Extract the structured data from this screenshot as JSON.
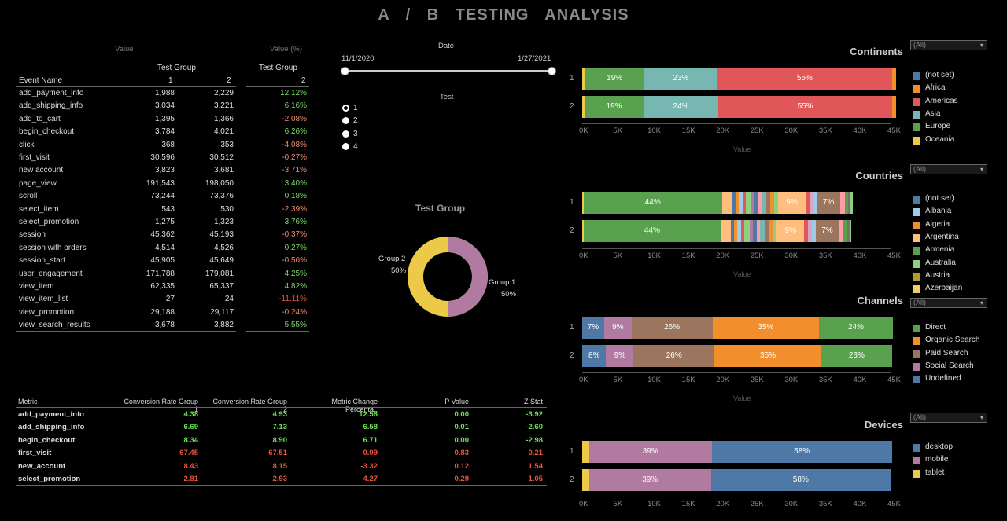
{
  "title": "A / B   TESTING   ANALYSIS",
  "event_table": {
    "value_header": "Value",
    "value_pct_header": "Value (%)",
    "test_group_label": "Test Group",
    "test_group_label2": "Test Group",
    "col_event": "Event Name",
    "col_g1": "1",
    "col_g2": "2",
    "col_pct": "2",
    "rows": [
      {
        "name": "add_payment_info",
        "g1": "1,988",
        "g2": "2,229",
        "pct": "12.12%",
        "sign": "pos"
      },
      {
        "name": "add_shipping_info",
        "g1": "3,034",
        "g2": "3,221",
        "pct": "6.16%",
        "sign": "pos"
      },
      {
        "name": "add_to_cart",
        "g1": "1,395",
        "g2": "1,366",
        "pct": "-2.08%",
        "sign": "neg"
      },
      {
        "name": "begin_checkout",
        "g1": "3,784",
        "g2": "4,021",
        "pct": "6.26%",
        "sign": "pos"
      },
      {
        "name": "click",
        "g1": "368",
        "g2": "353",
        "pct": "-4.08%",
        "sign": "neg"
      },
      {
        "name": "first_visit",
        "g1": "30,596",
        "g2": "30,512",
        "pct": "-0.27%",
        "sign": "neg"
      },
      {
        "name": "new account",
        "g1": "3,823",
        "g2": "3,681",
        "pct": "-3.71%",
        "sign": "neg"
      },
      {
        "name": "page_view",
        "g1": "191,543",
        "g2": "198,050",
        "pct": "3.40%",
        "sign": "pos"
      },
      {
        "name": "scroll",
        "g1": "73,244",
        "g2": "73,376",
        "pct": "0.18%",
        "sign": "pos"
      },
      {
        "name": "select_item",
        "g1": "543",
        "g2": "530",
        "pct": "-2.39%",
        "sign": "neg"
      },
      {
        "name": "select_promotion",
        "g1": "1,275",
        "g2": "1,323",
        "pct": "3.76%",
        "sign": "pos"
      },
      {
        "name": "session",
        "g1": "45,362",
        "g2": "45,193",
        "pct": "-0.37%",
        "sign": "neg"
      },
      {
        "name": "session with orders",
        "g1": "4,514",
        "g2": "4,526",
        "pct": "0.27%",
        "sign": "pos"
      },
      {
        "name": "session_start",
        "g1": "45,905",
        "g2": "45,649",
        "pct": "-0.56%",
        "sign": "neg"
      },
      {
        "name": "user_engagement",
        "g1": "171,788",
        "g2": "179,081",
        "pct": "4.25%",
        "sign": "pos"
      },
      {
        "name": "view_item",
        "g1": "62,335",
        "g2": "65,337",
        "pct": "4.82%",
        "sign": "pos"
      },
      {
        "name": "view_item_list",
        "g1": "27",
        "g2": "24",
        "pct": "-11.11%",
        "sign": "red"
      },
      {
        "name": "view_promotion",
        "g1": "29,188",
        "g2": "29,117",
        "pct": "-0.24%",
        "sign": "neg"
      },
      {
        "name": "view_search_results",
        "g1": "3,678",
        "g2": "3,882",
        "pct": "5.55%",
        "sign": "pos"
      }
    ]
  },
  "filters": {
    "date_label": "Date",
    "date_start": "11/1/2020",
    "date_end": "1/27/2021",
    "test_label": "Test",
    "test_options": [
      "1",
      "2",
      "3",
      "4"
    ],
    "test_selected": "1"
  },
  "donut": {
    "title": "Test Group",
    "group2_label": "Group 2",
    "group2_pct": "50%",
    "group1_label": "Group 1",
    "group1_pct": "50%",
    "group1_color": "#b07aa1",
    "group2_color": "#edc948"
  },
  "metric_table": {
    "headers": [
      "Metric",
      "Conversion Rate Group 1",
      "Conversion Rate Group 2",
      "Metric Change Percenta..",
      "P Value",
      "Z Stat"
    ],
    "rows": [
      {
        "name": "add_payment_info",
        "c1": "4.38",
        "c2": "4.93",
        "c3": "12.56",
        "c4": "0.00",
        "c5": "-3.92",
        "color": "green"
      },
      {
        "name": "add_shipping_info",
        "c1": "6.69",
        "c2": "7.13",
        "c3": "6.58",
        "c4": "0.01",
        "c5": "-2.60",
        "color": "green"
      },
      {
        "name": "begin_checkout",
        "c1": "8.34",
        "c2": "8.90",
        "c3": "6.71",
        "c4": "0.00",
        "c5": "-2.98",
        "color": "green"
      },
      {
        "name": "first_visit",
        "c1": "67.45",
        "c2": "67.51",
        "c3": "0.09",
        "c4": "0.83",
        "c5": "-0.21",
        "color": "red"
      },
      {
        "name": "new_account",
        "c1": "8.43",
        "c2": "8.15",
        "c3": "-3.32",
        "c4": "0.12",
        "c5": "1.54",
        "color": "red"
      },
      {
        "name": "select_promotion",
        "c1": "2.81",
        "c2": "2.93",
        "c3": "4.27",
        "c4": "0.29",
        "c5": "-1.05",
        "color": "red"
      }
    ]
  },
  "axis_ticks": [
    "0K",
    "5K",
    "10K",
    "15K",
    "20K",
    "25K",
    "30K",
    "35K",
    "40K",
    "45K"
  ],
  "axis_title": "Value",
  "chart_data": [
    {
      "type": "bar",
      "title": "Continents",
      "filter": "(All)",
      "rows": [
        "1",
        "2"
      ],
      "xlim": [
        0,
        45000
      ],
      "legend": [
        {
          "name": "(not set)",
          "color": "#4e79a7"
        },
        {
          "name": "Africa",
          "color": "#f28e2b"
        },
        {
          "name": "Americas",
          "color": "#e15759"
        },
        {
          "name": "Asia",
          "color": "#76b7b2"
        },
        {
          "name": "Europe",
          "color": "#59a14f"
        },
        {
          "name": "Oceania",
          "color": "#edc948"
        }
      ],
      "series": [
        {
          "row": "1",
          "segments": [
            {
              "name": "Oceania",
              "value": 400,
              "color": "#edc948",
              "label": ""
            },
            {
              "name": "Europe",
              "value": 8650,
              "color": "#59a14f",
              "label": "19%"
            },
            {
              "name": "Asia",
              "value": 10700,
              "color": "#76b7b2",
              "label": "23%"
            },
            {
              "name": "Americas",
              "value": 25450,
              "color": "#e15759",
              "label": "55%"
            },
            {
              "name": "Africa",
              "value": 600,
              "color": "#f28e2b",
              "label": ""
            }
          ]
        },
        {
          "row": "2",
          "segments": [
            {
              "name": "Oceania",
              "value": 400,
              "color": "#edc948",
              "label": ""
            },
            {
              "name": "Europe",
              "value": 8500,
              "color": "#59a14f",
              "label": "19%"
            },
            {
              "name": "Asia",
              "value": 11000,
              "color": "#76b7b2",
              "label": "24%"
            },
            {
              "name": "Americas",
              "value": 25300,
              "color": "#e15759",
              "label": "55%"
            },
            {
              "name": "Africa",
              "value": 600,
              "color": "#f28e2b",
              "label": ""
            }
          ]
        }
      ]
    },
    {
      "type": "bar",
      "title": "Countries",
      "filter": "(All)",
      "rows": [
        "1",
        "2"
      ],
      "xlim": [
        0,
        45000
      ],
      "legend": [
        {
          "name": "(not set)",
          "color": "#4e79a7"
        },
        {
          "name": "Albania",
          "color": "#a0cbe8"
        },
        {
          "name": "Algeria",
          "color": "#f28e2b"
        },
        {
          "name": "Argentina",
          "color": "#ffbe7d"
        },
        {
          "name": "Armenia",
          "color": "#59a14f"
        },
        {
          "name": "Australia",
          "color": "#8cd17d"
        },
        {
          "name": "Austria",
          "color": "#b6992d"
        },
        {
          "name": "Azerbaijan",
          "color": "#f1ce63"
        }
      ],
      "series": [
        {
          "row": "1",
          "segments": [
            {
              "value": 200,
              "color": "#edc948",
              "label": ""
            },
            {
              "value": 20200,
              "color": "#59a14f",
              "label": "44%"
            },
            {
              "value": 1500,
              "color": "#ffbe7d",
              "label": ""
            },
            {
              "value": 500,
              "color": "#4e79a7",
              "label": ""
            },
            {
              "value": 400,
              "color": "#f28e2b",
              "label": ""
            },
            {
              "value": 600,
              "color": "#a0cbe8",
              "label": ""
            },
            {
              "value": 500,
              "color": "#e15759",
              "label": ""
            },
            {
              "value": 700,
              "color": "#8cd17d",
              "label": ""
            },
            {
              "value": 500,
              "color": "#b07aa1",
              "label": ""
            },
            {
              "value": 600,
              "color": "#4e79a7",
              "label": ""
            },
            {
              "value": 500,
              "color": "#ff9da7",
              "label": ""
            },
            {
              "value": 700,
              "color": "#76b7b2",
              "label": ""
            },
            {
              "value": 500,
              "color": "#9c755f",
              "label": ""
            },
            {
              "value": 600,
              "color": "#f28e2b",
              "label": ""
            },
            {
              "value": 600,
              "color": "#8cd17d",
              "label": ""
            },
            {
              "value": 4000,
              "color": "#ffbe7d",
              "label": "9%"
            },
            {
              "value": 600,
              "color": "#e15759",
              "label": ""
            },
            {
              "value": 500,
              "color": "#d4a6c8",
              "label": ""
            },
            {
              "value": 600,
              "color": "#a0cbe8",
              "label": ""
            },
            {
              "value": 3300,
              "color": "#9c755f",
              "label": "7%"
            },
            {
              "value": 700,
              "color": "#ff9da7",
              "label": ""
            },
            {
              "value": 500,
              "color": "#59a14f",
              "label": ""
            },
            {
              "value": 400,
              "color": "#79706e",
              "label": ""
            },
            {
              "value": 300,
              "color": "#8cd17d",
              "label": ""
            }
          ]
        },
        {
          "row": "2",
          "segments": [
            {
              "value": 200,
              "color": "#edc948",
              "label": ""
            },
            {
              "value": 20000,
              "color": "#59a14f",
              "label": "44%"
            },
            {
              "value": 1500,
              "color": "#ffbe7d",
              "label": ""
            },
            {
              "value": 500,
              "color": "#4e79a7",
              "label": ""
            },
            {
              "value": 400,
              "color": "#f28e2b",
              "label": ""
            },
            {
              "value": 600,
              "color": "#a0cbe8",
              "label": ""
            },
            {
              "value": 500,
              "color": "#e15759",
              "label": ""
            },
            {
              "value": 700,
              "color": "#8cd17d",
              "label": ""
            },
            {
              "value": 500,
              "color": "#b07aa1",
              "label": ""
            },
            {
              "value": 600,
              "color": "#4e79a7",
              "label": ""
            },
            {
              "value": 500,
              "color": "#ff9da7",
              "label": ""
            },
            {
              "value": 700,
              "color": "#76b7b2",
              "label": ""
            },
            {
              "value": 500,
              "color": "#9c755f",
              "label": ""
            },
            {
              "value": 600,
              "color": "#f28e2b",
              "label": ""
            },
            {
              "value": 600,
              "color": "#8cd17d",
              "label": ""
            },
            {
              "value": 4000,
              "color": "#ffbe7d",
              "label": "9%"
            },
            {
              "value": 600,
              "color": "#e15759",
              "label": ""
            },
            {
              "value": 500,
              "color": "#d4a6c8",
              "label": ""
            },
            {
              "value": 600,
              "color": "#a0cbe8",
              "label": ""
            },
            {
              "value": 3300,
              "color": "#9c755f",
              "label": "7%"
            },
            {
              "value": 700,
              "color": "#ff9da7",
              "label": ""
            },
            {
              "value": 500,
              "color": "#59a14f",
              "label": ""
            },
            {
              "value": 400,
              "color": "#79706e",
              "label": ""
            },
            {
              "value": 300,
              "color": "#8cd17d",
              "label": ""
            }
          ]
        }
      ]
    },
    {
      "type": "bar",
      "title": "Channels",
      "filter": "(All)",
      "rows": [
        "1",
        "2"
      ],
      "xlim": [
        0,
        45000
      ],
      "legend": [
        {
          "name": "Direct",
          "color": "#59a14f"
        },
        {
          "name": "Organic Search",
          "color": "#f28e2b"
        },
        {
          "name": "Paid Search",
          "color": "#9c755f"
        },
        {
          "name": "Social Search",
          "color": "#b07aa1"
        },
        {
          "name": "Undefined",
          "color": "#4e79a7"
        }
      ],
      "series": [
        {
          "row": "1",
          "segments": [
            {
              "name": "Undefined",
              "value": 3200,
              "color": "#4e79a7",
              "label": "7%"
            },
            {
              "name": "Social Search",
              "value": 4000,
              "color": "#b07aa1",
              "label": "9%"
            },
            {
              "name": "Paid Search",
              "value": 11800,
              "color": "#9c755f",
              "label": "26%"
            },
            {
              "name": "Organic Search",
              "value": 15600,
              "color": "#f28e2b",
              "label": "35%"
            },
            {
              "name": "Direct",
              "value": 10700,
              "color": "#59a14f",
              "label": "24%"
            }
          ]
        },
        {
          "row": "2",
          "segments": [
            {
              "name": "Undefined",
              "value": 3500,
              "color": "#4e79a7",
              "label": "8%"
            },
            {
              "name": "Social Search",
              "value": 4000,
              "color": "#b07aa1",
              "label": "9%"
            },
            {
              "name": "Paid Search",
              "value": 11800,
              "color": "#9c755f",
              "label": "26%"
            },
            {
              "name": "Organic Search",
              "value": 15600,
              "color": "#f28e2b",
              "label": "35%"
            },
            {
              "name": "Direct",
              "value": 10300,
              "color": "#59a14f",
              "label": "23%"
            }
          ]
        }
      ]
    },
    {
      "type": "bar",
      "title": "Devices",
      "filter": "(All)",
      "rows": [
        "1",
        "2"
      ],
      "xlim": [
        0,
        45000
      ],
      "legend": [
        {
          "name": "desktop",
          "color": "#4e79a7"
        },
        {
          "name": "mobile",
          "color": "#b07aa1"
        },
        {
          "name": "tablet",
          "color": "#edc948"
        }
      ],
      "series": [
        {
          "row": "1",
          "segments": [
            {
              "name": "tablet",
              "value": 1000,
              "color": "#edc948",
              "label": ""
            },
            {
              "name": "mobile",
              "value": 17900,
              "color": "#b07aa1",
              "label": "39%"
            },
            {
              "name": "desktop",
              "value": 26300,
              "color": "#4e79a7",
              "label": "58%"
            }
          ]
        },
        {
          "row": "2",
          "segments": [
            {
              "name": "tablet",
              "value": 1000,
              "color": "#edc948",
              "label": ""
            },
            {
              "name": "mobile",
              "value": 17800,
              "color": "#b07aa1",
              "label": "39%"
            },
            {
              "name": "desktop",
              "value": 26200,
              "color": "#4e79a7",
              "label": "58%"
            }
          ]
        }
      ]
    }
  ]
}
